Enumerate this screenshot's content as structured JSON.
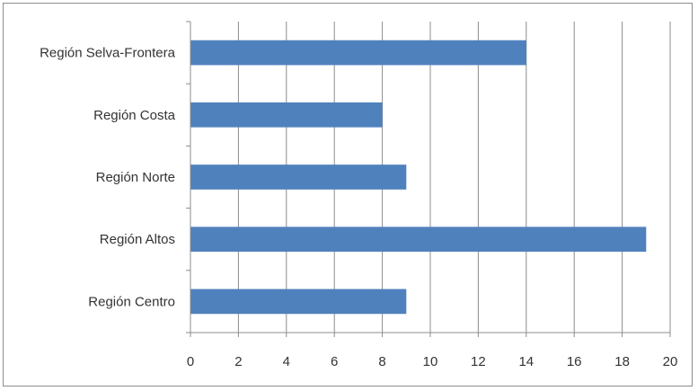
{
  "chart_data": {
    "type": "bar",
    "orientation": "horizontal",
    "title": "",
    "xlabel": "",
    "ylabel": "",
    "categories": [
      "Región Selva-Frontera",
      "Región Costa",
      "Región Norte",
      "Región Altos",
      "Región Centro"
    ],
    "values": [
      14,
      8,
      9,
      19,
      9
    ],
    "xlim": [
      0,
      20
    ],
    "xticks": [
      "0",
      "2",
      "4",
      "6",
      "8",
      "10",
      "12",
      "14",
      "16",
      "18",
      "20"
    ],
    "grid": "vertical",
    "legend": "none",
    "bar_color": "#4f81bd",
    "grid_color": "#8c8c8c"
  }
}
